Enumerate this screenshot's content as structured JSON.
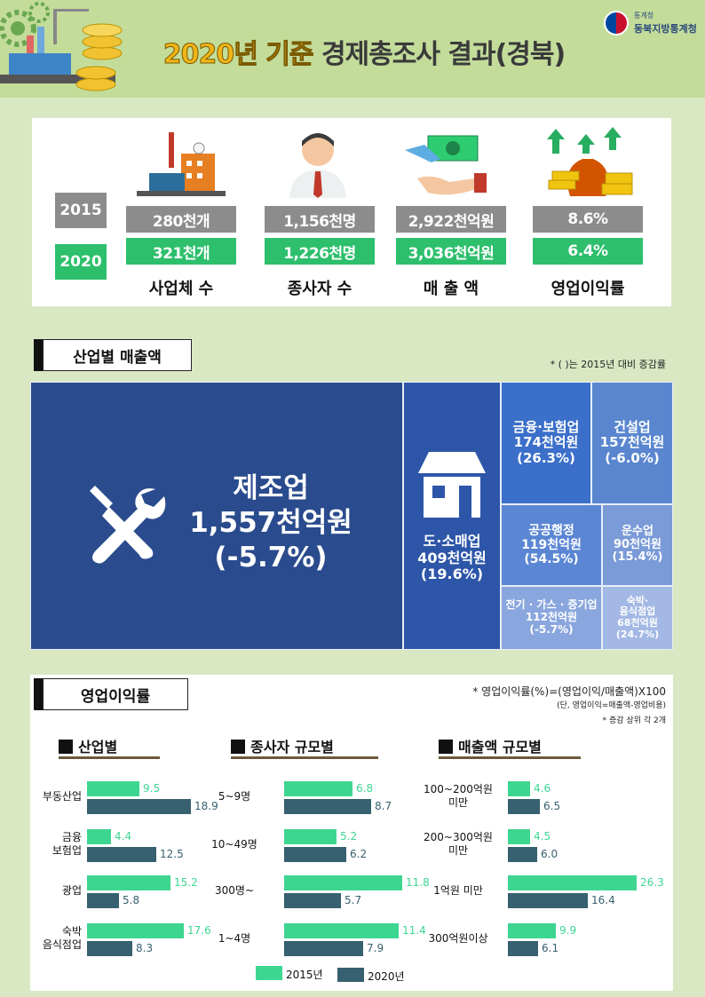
{
  "header": {
    "title_part1": "2020년 기준",
    "title_part2": "경제총조사 결과(경북)",
    "agency_small": "통계청",
    "agency_name": "동북지방통계청"
  },
  "summary": {
    "years": [
      "2015",
      "2020"
    ],
    "items": [
      {
        "label": "사업체 수",
        "v2015": "280천개",
        "v2020": "321천개",
        "icon": "factory-icon"
      },
      {
        "label": "종사자 수",
        "v2015": "1,156천명",
        "v2020": "1,226천명",
        "icon": "worker-icon"
      },
      {
        "label": "매 출 액",
        "v2015": "2,922천억원",
        "v2020": "3,036천억원",
        "icon": "money-hand-icon"
      },
      {
        "label": "영업이익률",
        "v2015": "8.6%",
        "v2020": "6.4%",
        "icon": "money-bag-icon"
      }
    ],
    "colors": {
      "y2015": "#8c8c8c",
      "y2020": "#2dbf6c"
    }
  },
  "sales_section": {
    "title": "산업별 매출액",
    "note": "* (    )는 2015년 대비 증감률",
    "tiles": [
      {
        "name": "제조업",
        "value": "1,557천억원",
        "change": "(-5.7%)"
      },
      {
        "name": "도·소매업",
        "value": "409천억원",
        "change": "(19.6%)"
      },
      {
        "name": "금융·보험업",
        "value": "174천억원",
        "change": "(26.3%)"
      },
      {
        "name": "건설업",
        "value": "157천억원",
        "change": "(-6.0%)"
      },
      {
        "name": "공공행정",
        "value": "119천억원",
        "change": "(54.5%)"
      },
      {
        "name": "운수업",
        "value": "90천억원",
        "change": "(15.4%)"
      },
      {
        "name": "전기 · 가스 · 증기업",
        "value": "112천억원",
        "change": "(-5.7%)"
      },
      {
        "name": "숙박·",
        "name2": "음식점업",
        "value": "68천억원",
        "change": "(24.7%)"
      }
    ]
  },
  "margin_section": {
    "title": "영업이익률",
    "note1": "* 영업이익률(%)=(영업이익/매출액)X100",
    "note2": "(단, 영업이익=매출액-영업비용)",
    "note3": "* 증감 상위 각 2개",
    "legend": {
      "y2015": "2015년",
      "y2020": "2020년"
    }
  },
  "chart_data": [
    {
      "type": "bar",
      "title": "산업별",
      "categories": [
        "부동산업",
        "금융|보험업",
        "광업",
        "숙박|음식점업"
      ],
      "series": [
        {
          "name": "2015년",
          "values": [
            9.5,
            4.4,
            15.2,
            17.6
          ]
        },
        {
          "name": "2020년",
          "values": [
            18.9,
            12.5,
            5.8,
            8.3
          ]
        }
      ]
    },
    {
      "type": "bar",
      "title": "종사자 규모별",
      "categories": [
        "5~9명",
        "10~49명",
        "300명~",
        "1~4명"
      ],
      "series": [
        {
          "name": "2015년",
          "values": [
            6.8,
            5.2,
            11.8,
            11.4
          ]
        },
        {
          "name": "2020년",
          "values": [
            8.7,
            6.2,
            5.7,
            7.9
          ]
        }
      ]
    },
    {
      "type": "bar",
      "title": "매출액 규모별",
      "categories": [
        "100~200억원|미만",
        "200~300억원|미만",
        "1억원 미만",
        "300억원이상"
      ],
      "series": [
        {
          "name": "2015년",
          "values": [
            4.6,
            4.5,
            26.3,
            9.9
          ]
        },
        {
          "name": "2020년",
          "values": [
            6.5,
            6.0,
            16.4,
            6.1
          ]
        }
      ]
    }
  ]
}
